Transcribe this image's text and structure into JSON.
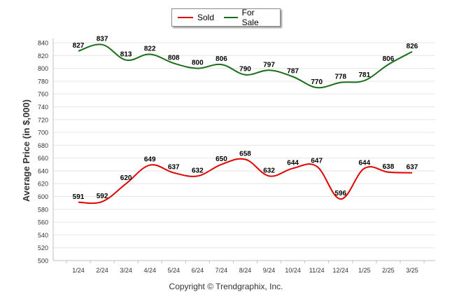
{
  "chart_data": {
    "type": "line",
    "title": "",
    "xlabel": "",
    "ylabel": "Average Price (in $,000)",
    "categories": [
      "1/24",
      "2/24",
      "3/24",
      "4/24",
      "5/24",
      "6/24",
      "7/24",
      "8/24",
      "9/24",
      "10/24",
      "11/24",
      "12/24",
      "1/25",
      "2/25",
      "3/25"
    ],
    "ylim": [
      500,
      840
    ],
    "yticks": [
      500,
      520,
      540,
      560,
      580,
      600,
      620,
      640,
      660,
      680,
      700,
      720,
      740,
      760,
      780,
      800,
      820,
      840
    ],
    "grid": true,
    "legend_position": "top-center",
    "series": [
      {
        "name": "Sold",
        "color": "#e00000",
        "values": [
          591,
          592,
          620,
          649,
          637,
          632,
          650,
          658,
          632,
          644,
          647,
          596,
          644,
          638,
          637
        ]
      },
      {
        "name": "For Sale",
        "color": "#1a6e1a",
        "values": [
          827,
          837,
          813,
          822,
          808,
          800,
          806,
          790,
          797,
          787,
          770,
          778,
          781,
          806,
          826
        ]
      }
    ]
  },
  "footer": {
    "copyright": "Copyright © Trendgraphix, Inc."
  }
}
